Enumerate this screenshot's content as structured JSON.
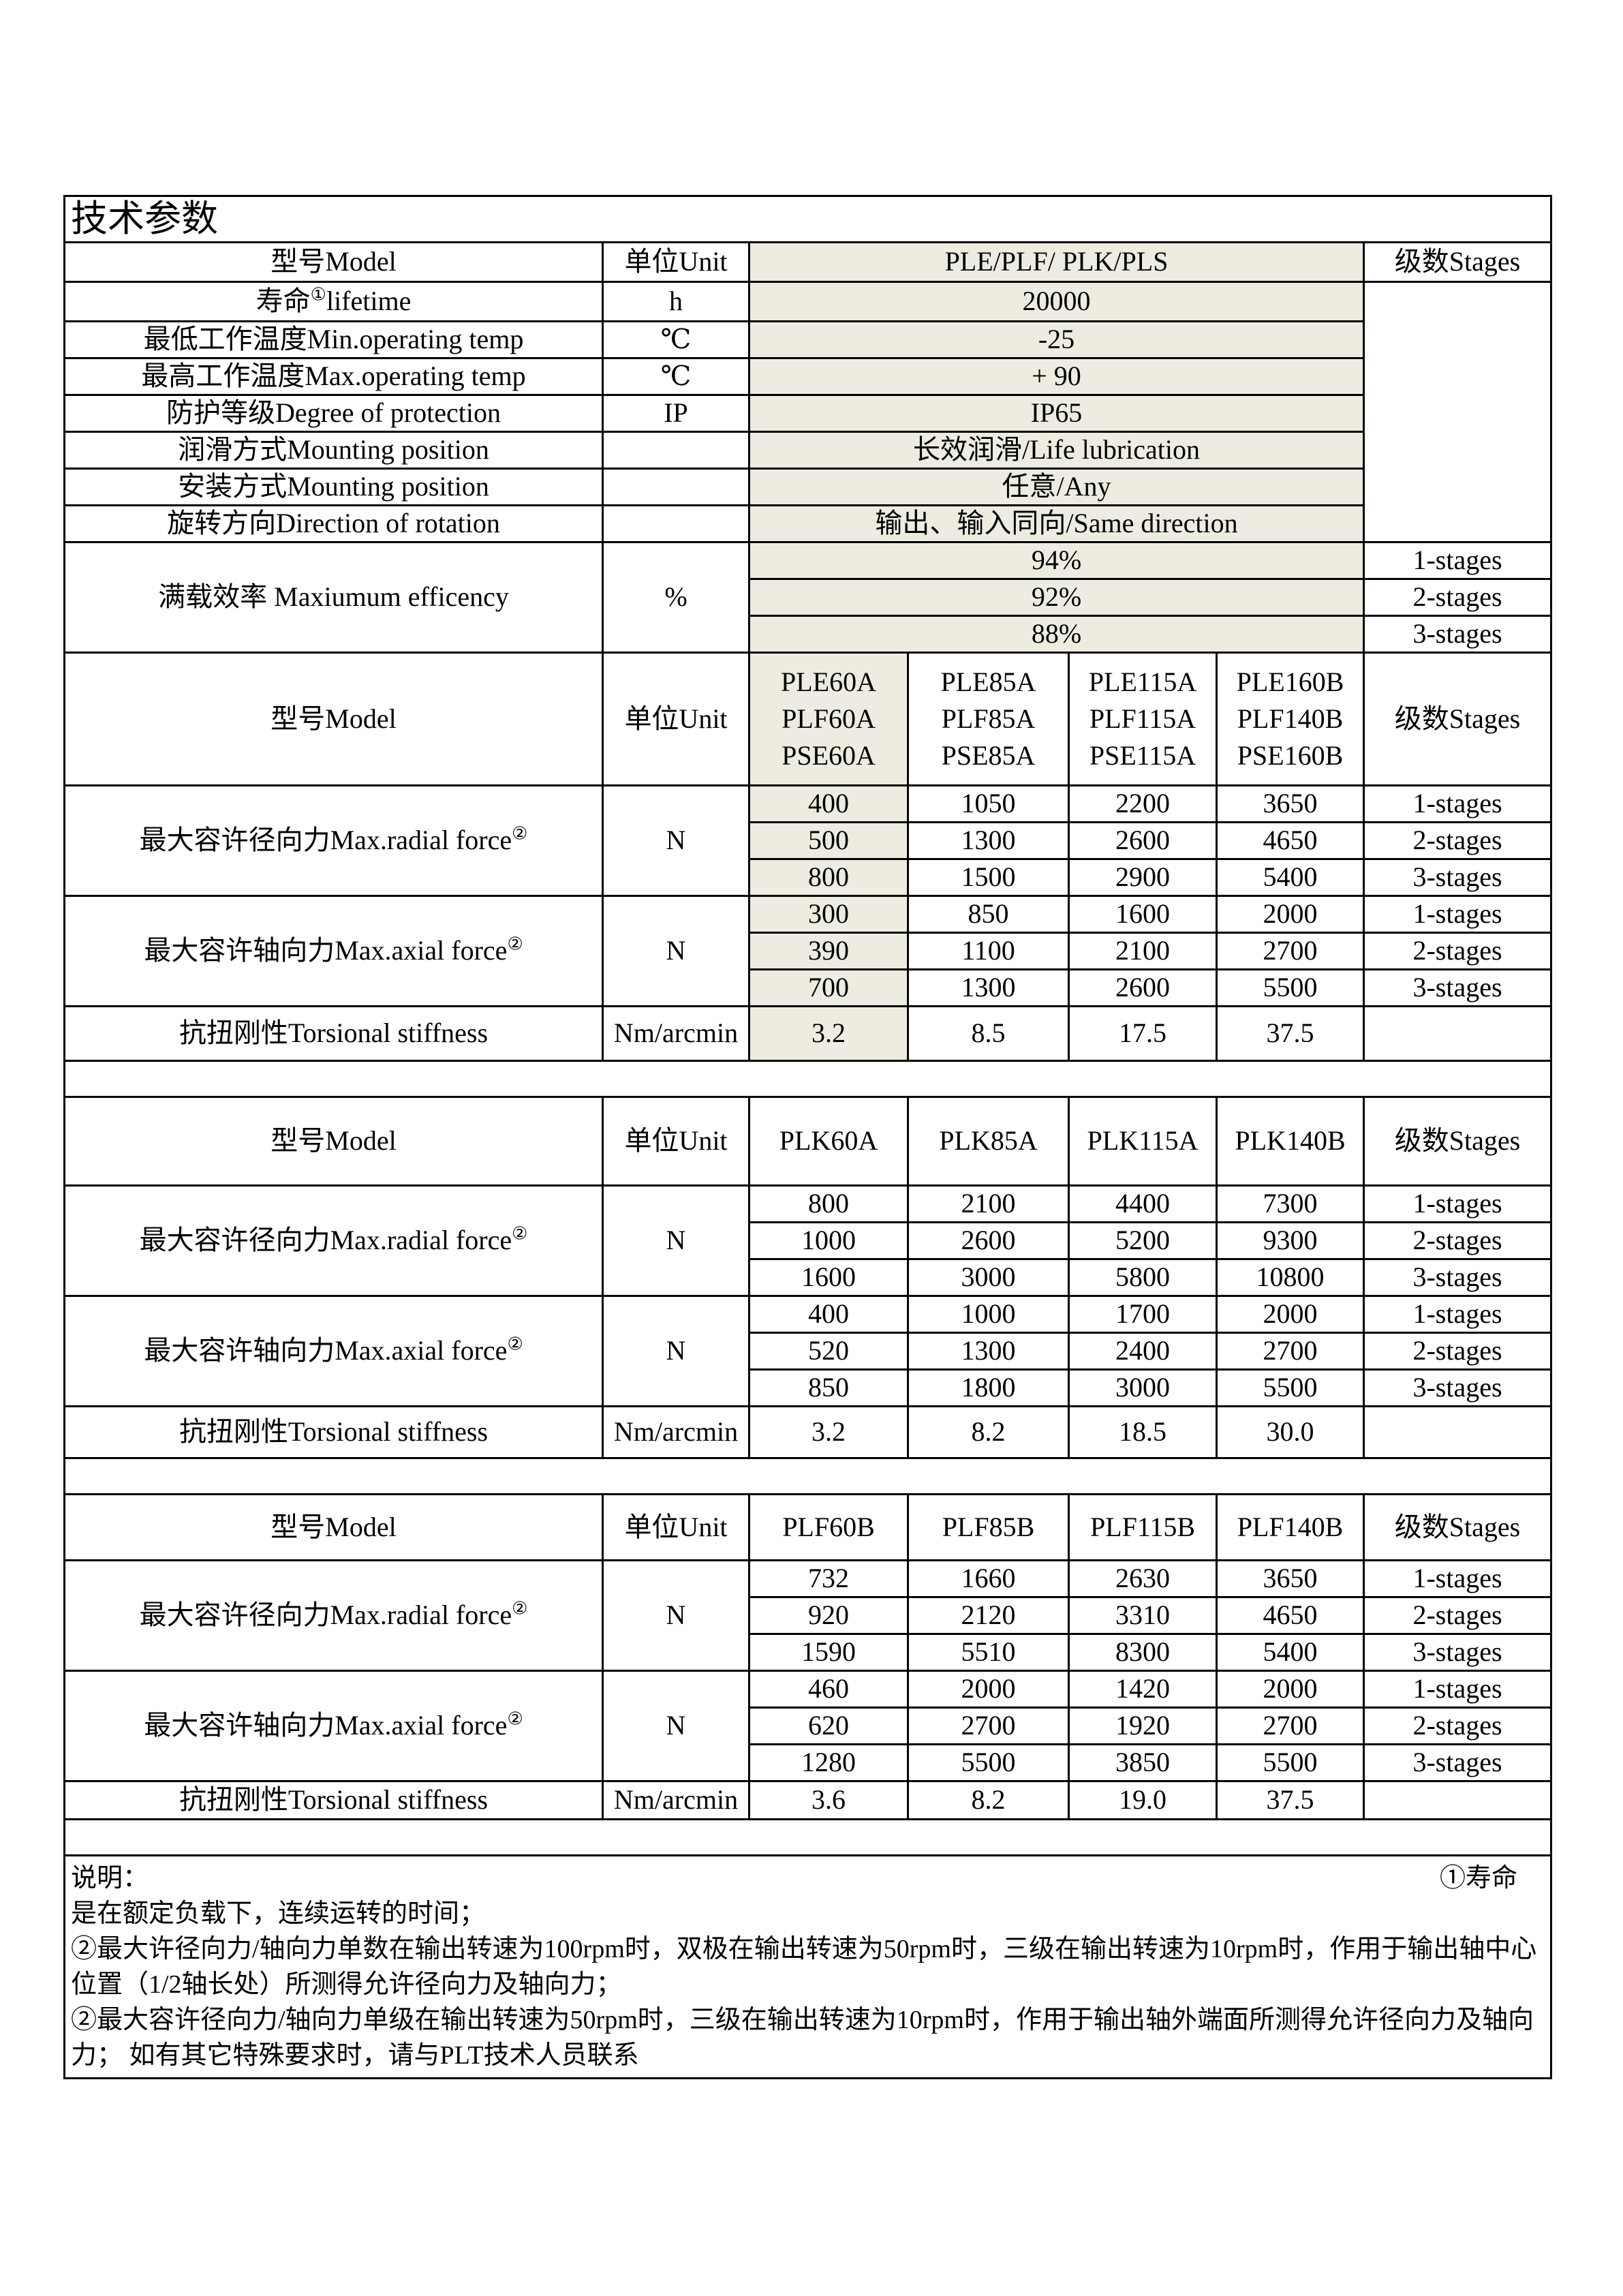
{
  "title": "技术参数",
  "general": {
    "header": {
      "model_label": "型号Model",
      "unit_label": "单位Unit",
      "series": "PLE/PLF/ PLK/PLS",
      "stages_label": "级数Stages"
    },
    "rows": [
      {
        "label": "寿命",
        "sup": "①",
        "label_suffix": "lifetime",
        "unit": "h",
        "value": "20000"
      },
      {
        "label": "最低工作温度Min.operating temp",
        "unit": "℃",
        "value": "-25"
      },
      {
        "label": "最高工作温度Max.operating temp",
        "unit": "℃",
        "value": "+ 90"
      },
      {
        "label": "防护等级Degree of protection",
        "unit": "IP",
        "value": "IP65"
      },
      {
        "label": "润滑方式Mounting position",
        "unit": "",
        "value": "长效润滑/Life lubrication"
      },
      {
        "label": "安装方式Mounting position",
        "unit": "",
        "value": "任意/Any"
      },
      {
        "label": "旋转方向Direction of rotation",
        "unit": "",
        "value": "输出、输入同向/Same direction"
      }
    ],
    "efficiency": {
      "label": "满载效率 Maxiumum efficency",
      "unit": "%",
      "rows": [
        {
          "value": "94%",
          "stage": "1-stages"
        },
        {
          "value": "92%",
          "stage": "2-stages"
        },
        {
          "value": "88%",
          "stage": "3-stages"
        }
      ]
    }
  },
  "sections": [
    {
      "header": {
        "model_label": "型号Model",
        "unit_label": "单位Unit",
        "stages_label": "级数Stages",
        "models": [
          [
            "PLE60A",
            "PLF60A",
            "PSE60A"
          ],
          [
            "PLE85A",
            "PLF85A",
            "PSE85A"
          ],
          [
            "PLE115A",
            "PLF115A",
            "PSE115A"
          ],
          [
            "PLE160B",
            "PLF140B",
            "PSE160B"
          ]
        ]
      },
      "shade_first": true,
      "groups": [
        {
          "label": "最大容许径向力Max.radial force",
          "sup": "②",
          "unit": "N",
          "rows": [
            {
              "values": [
                "400",
                "1050",
                "2200",
                "3650"
              ],
              "stage": "1-stages"
            },
            {
              "values": [
                "500",
                "1300",
                "2600",
                "4650"
              ],
              "stage": "2-stages"
            },
            {
              "values": [
                "800",
                "1500",
                "2900",
                "5400"
              ],
              "stage": "3-stages"
            }
          ]
        },
        {
          "label": "最大容许轴向力Max.axial force",
          "sup": "②",
          "unit": "N",
          "rows": [
            {
              "values": [
                "300",
                "850",
                "1600",
                "2000"
              ],
              "stage": "1-stages"
            },
            {
              "values": [
                "390",
                "1100",
                "2100",
                "2700"
              ],
              "stage": "2-stages"
            },
            {
              "values": [
                "700",
                "1300",
                "2600",
                "5500"
              ],
              "stage": "3-stages"
            }
          ]
        }
      ],
      "torsional": {
        "label": "抗扭刚性Torsional stiffness",
        "unit": "Nm/arcmin",
        "values": [
          "3.2",
          "8.5",
          "17.5",
          "37.5"
        ]
      }
    },
    {
      "header": {
        "model_label": "型号Model",
        "unit_label": "单位Unit",
        "stages_label": "级数Stages",
        "models": [
          [
            "PLK60A"
          ],
          [
            "PLK85A"
          ],
          [
            "PLK115A"
          ],
          [
            "PLK140B"
          ]
        ]
      },
      "shade_first": false,
      "groups": [
        {
          "label": "最大容许径向力Max.radial force",
          "sup": "②",
          "unit": "N",
          "rows": [
            {
              "values": [
                "800",
                "2100",
                "4400",
                "7300"
              ],
              "stage": "1-stages"
            },
            {
              "values": [
                "1000",
                "2600",
                "5200",
                "9300"
              ],
              "stage": "2-stages"
            },
            {
              "values": [
                "1600",
                "3000",
                "5800",
                "10800"
              ],
              "stage": "3-stages"
            }
          ]
        },
        {
          "label": "最大容许轴向力Max.axial force",
          "sup": "②",
          "unit": "N",
          "rows": [
            {
              "values": [
                "400",
                "1000",
                "1700",
                "2000"
              ],
              "stage": "1-stages"
            },
            {
              "values": [
                "520",
                "1300",
                "2400",
                "2700"
              ],
              "stage": "2-stages"
            },
            {
              "values": [
                "850",
                "1800",
                "3000",
                "5500"
              ],
              "stage": "3-stages"
            }
          ]
        }
      ],
      "torsional": {
        "label": "抗扭刚性Torsional stiffness",
        "unit": "Nm/arcmin",
        "values": [
          "3.2",
          "8.2",
          "18.5",
          "30.0"
        ]
      }
    },
    {
      "header": {
        "model_label": "型号Model",
        "unit_label": "单位Unit",
        "stages_label": "级数Stages",
        "models": [
          [
            "PLF60B"
          ],
          [
            "PLF85B"
          ],
          [
            "PLF115B"
          ],
          [
            "PLF140B"
          ]
        ]
      },
      "shade_first": false,
      "groups": [
        {
          "label": "最大容许径向力Max.radial force",
          "sup": "②",
          "unit": "N",
          "rows": [
            {
              "values": [
                "732",
                "1660",
                "2630",
                "3650"
              ],
              "stage": "1-stages"
            },
            {
              "values": [
                "920",
                "2120",
                "3310",
                "4650"
              ],
              "stage": "2-stages"
            },
            {
              "values": [
                "1590",
                "5510",
                "8300",
                "5400"
              ],
              "stage": "3-stages"
            }
          ]
        },
        {
          "label": "最大容许轴向力Max.axial force",
          "sup": "②",
          "unit": "N",
          "rows": [
            {
              "values": [
                "460",
                "2000",
                "1420",
                "2000"
              ],
              "stage": "1-stages"
            },
            {
              "values": [
                "620",
                "2700",
                "1920",
                "2700"
              ],
              "stage": "2-stages"
            },
            {
              "values": [
                "1280",
                "5500",
                "3850",
                "5500"
              ],
              "stage": "3-stages"
            }
          ]
        }
      ],
      "torsional": {
        "label": "抗扭刚性Torsional stiffness",
        "unit": "Nm/arcmin",
        "values": [
          "3.6",
          "8.2",
          "19.0",
          "37.5"
        ]
      }
    }
  ],
  "notes": {
    "heading": "说明：",
    "right": "①寿命",
    "lines": [
      "是在额定负载下，连续运转的时间；",
      "②最大许径向力/轴向力单数在输出转速为100rpm时，双极在输出转速为50rpm时，三级在输出转速为10rpm时，作用于输出轴中心位置（1/2轴长处）所测得允许径向力及轴向力；",
      "②最大容许径向力/轴向力单级在输出转速为50rpm时，三级在输出转速为10rpm时，作用于输出轴外端面所测得允许径向力及轴向力；  如有其它特殊要求时，请与PLT技术人员联系"
    ]
  },
  "colors": {
    "shaded_cell": "#eeece1",
    "border": "#000000"
  }
}
